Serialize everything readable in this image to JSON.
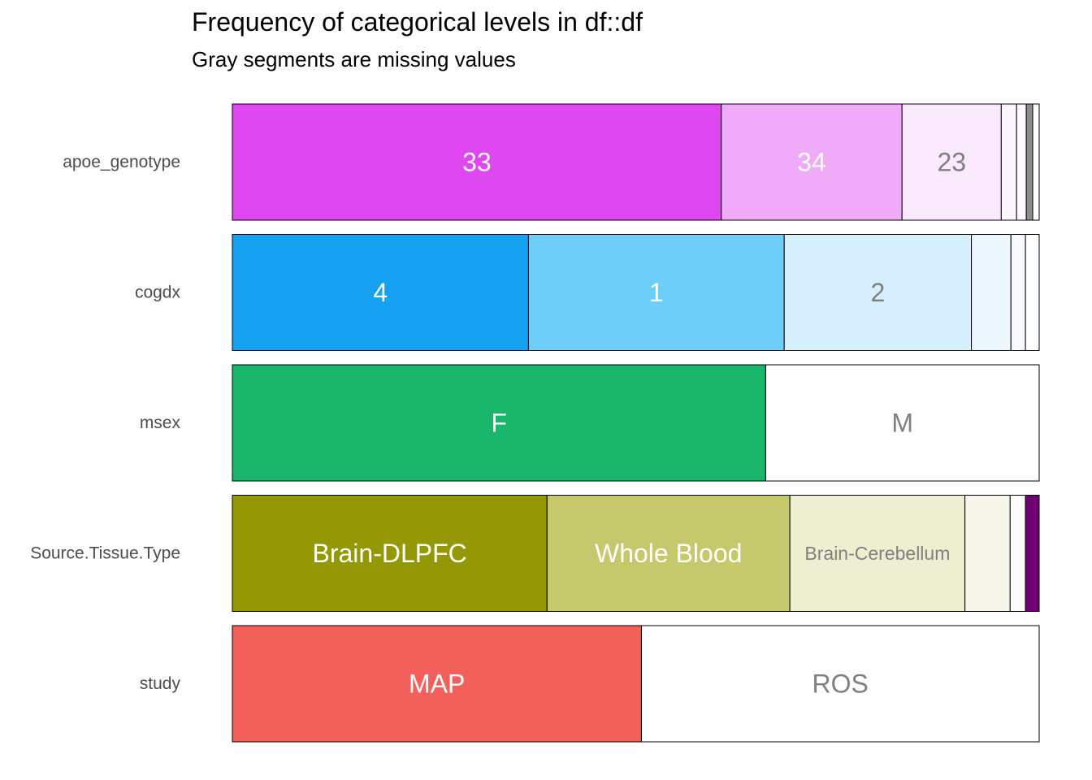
{
  "chart_data": {
    "type": "bar",
    "orientation": "horizontal",
    "stacked": "proportional",
    "title": "Frequency of categorical levels in df::df",
    "subtitle": "Gray segments are missing values",
    "xlabel": "",
    "ylabel": "",
    "xlim": [
      0,
      1
    ],
    "grid": false,
    "legend": "none",
    "missing_color": "#8c8c8c",
    "variables": [
      {
        "name": "apoe_genotype",
        "segments": [
          {
            "label": "33",
            "value": 0.606,
            "color": "#df48f1",
            "label_color": "#ffffff"
          },
          {
            "label": "34",
            "value": 0.224,
            "color": "#efabf7",
            "label_color": "#ffffff"
          },
          {
            "label": "23",
            "value": 0.123,
            "color": "#fae8fc",
            "label_color": "#808080"
          },
          {
            "label": "",
            "value": 0.019,
            "color": "#fdf5fe",
            "label_color": "#808080"
          },
          {
            "label": "",
            "value": 0.012,
            "color": "#fefbfe",
            "label_color": "#808080"
          },
          {
            "label": "",
            "value": 0.008,
            "color": "#8c8c8c",
            "label_color": "#808080"
          },
          {
            "label": "",
            "value": 0.008,
            "color": "#ffffff",
            "label_color": "#808080"
          }
        ]
      },
      {
        "name": "cogdx",
        "segments": [
          {
            "label": "4",
            "value": 0.367,
            "color": "#17a1f3",
            "label_color": "#ffffff"
          },
          {
            "label": "1",
            "value": 0.317,
            "color": "#6dcef9",
            "label_color": "#ffffff"
          },
          {
            "label": "2",
            "value": 0.232,
            "color": "#d6effc",
            "label_color": "#808080"
          },
          {
            "label": "",
            "value": 0.049,
            "color": "#edf8fe",
            "label_color": "#808080"
          },
          {
            "label": "",
            "value": 0.018,
            "color": "#f5fbff",
            "label_color": "#808080"
          },
          {
            "label": "",
            "value": 0.017,
            "color": "#fbfdff",
            "label_color": "#808080"
          }
        ]
      },
      {
        "name": "msex",
        "segments": [
          {
            "label": "F",
            "value": 0.661,
            "color": "#1ab66c",
            "label_color": "#ffffff"
          },
          {
            "label": "M",
            "value": 0.339,
            "color": "#ffffff",
            "label_color": "#808080"
          }
        ]
      },
      {
        "name": "Source.Tissue.Type",
        "segments": [
          {
            "label": "Brain-DLPFC",
            "value": 0.39,
            "color": "#939804",
            "label_color": "#ffffff"
          },
          {
            "label": "Whole Blood",
            "value": 0.301,
            "color": "#c6c96b",
            "label_color": "#ffffff"
          },
          {
            "label": "Brain-Cerebellum",
            "value": 0.217,
            "color": "#eeeed1",
            "label_color": "#808080"
          },
          {
            "label": "",
            "value": 0.056,
            "color": "#f6f7ea",
            "label_color": "#808080"
          },
          {
            "label": "",
            "value": 0.019,
            "color": "#fcfcf8",
            "label_color": "#808080"
          },
          {
            "label": "",
            "value": 0.017,
            "color": "#6f0071",
            "label_color": "#ffffff"
          }
        ]
      },
      {
        "name": "study",
        "segments": [
          {
            "label": "MAP",
            "value": 0.507,
            "color": "#f35f5b",
            "label_color": "#ffffff"
          },
          {
            "label": "ROS",
            "value": 0.493,
            "color": "#ffffff",
            "label_color": "#808080"
          }
        ]
      }
    ]
  }
}
